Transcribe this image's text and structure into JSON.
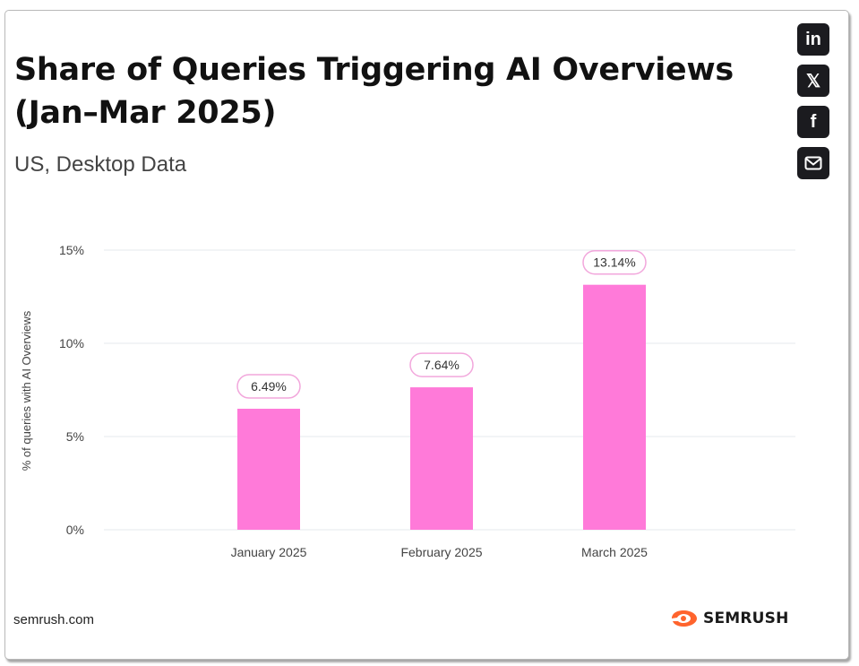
{
  "social": {
    "linkedin": {
      "label": "in",
      "icon": "linkedin-icon"
    },
    "x": {
      "label": "𝕏",
      "icon": "x-icon"
    },
    "facebook": {
      "label": "f",
      "icon": "facebook-icon"
    },
    "email": {
      "icon": "mail-icon"
    }
  },
  "footer": {
    "source": "semrush.com",
    "brand": "SEMRUSH",
    "brand_color": "#ff642d"
  },
  "chart_data": {
    "type": "bar",
    "title": "Share of Queries Triggering AI Overviews (Jan–Mar 2025)",
    "subtitle": "US, Desktop Data",
    "categories": [
      "January 2025",
      "February 2025",
      "March 2025"
    ],
    "values": [
      6.49,
      7.64,
      13.14
    ],
    "data_labels": [
      "6.49%",
      "7.64%",
      "13.14%"
    ],
    "xlabel": "",
    "ylabel": "% of queries with AI Overviews",
    "ylim": [
      0,
      15
    ],
    "yticks": [
      0,
      5,
      10,
      15
    ],
    "ytick_labels": [
      "0%",
      "5%",
      "10%",
      "15%"
    ],
    "grid": true,
    "bar_color": "#ff7ad9",
    "label_border_color": "#f2a7dc"
  }
}
